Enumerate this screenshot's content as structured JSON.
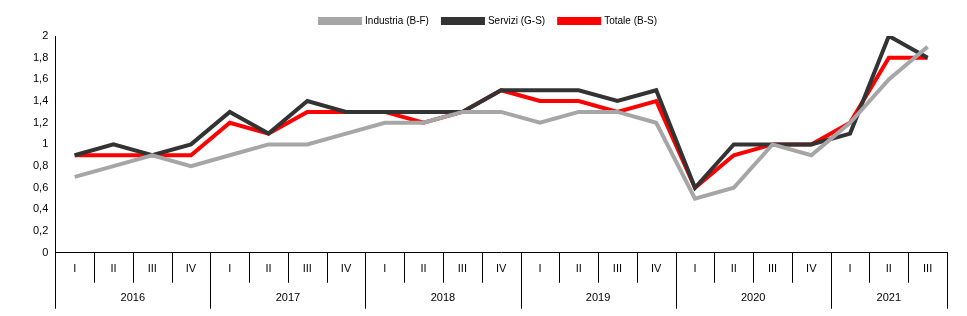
{
  "chart_data": {
    "type": "line",
    "categories": [
      "I",
      "II",
      "III",
      "IV",
      "I",
      "II",
      "III",
      "IV",
      "I",
      "II",
      "III",
      "IV",
      "I",
      "II",
      "III",
      "IV",
      "I",
      "II",
      "III",
      "IV",
      "I",
      "II",
      "III"
    ],
    "years": [
      "2016",
      "2017",
      "2018",
      "2019",
      "2020",
      "2021"
    ],
    "series": [
      {
        "name": "Industria (B-F)",
        "color": "#a6a6a6",
        "values": [
          0.7,
          0.8,
          0.9,
          0.8,
          0.9,
          1.0,
          1.0,
          1.1,
          1.2,
          1.2,
          1.3,
          1.3,
          1.2,
          1.3,
          1.3,
          1.2,
          0.5,
          0.6,
          1.0,
          0.9,
          1.2,
          1.6,
          1.9
        ]
      },
      {
        "name": "Servizi (G-S)",
        "color": "#333333",
        "values": [
          0.9,
          1.0,
          0.9,
          1.0,
          1.3,
          1.1,
          1.4,
          1.3,
          1.3,
          1.3,
          1.3,
          1.5,
          1.5,
          1.5,
          1.4,
          1.5,
          0.6,
          1.0,
          1.0,
          1.0,
          1.1,
          2.0,
          1.8
        ]
      },
      {
        "name": "Totale (B-S)",
        "color": "#ff0000",
        "values": [
          0.9,
          0.9,
          0.9,
          0.9,
          1.2,
          1.1,
          1.3,
          1.3,
          1.3,
          1.2,
          1.3,
          1.5,
          1.4,
          1.4,
          1.3,
          1.4,
          0.6,
          0.9,
          1.0,
          1.0,
          1.2,
          1.8,
          1.8
        ]
      }
    ],
    "ylim": [
      0,
      2
    ],
    "yticks": [
      0,
      {
        "value": 0.2,
        "label": "0,2"
      },
      {
        "value": 0.4,
        "label": "0,4"
      },
      {
        "value": 0.6,
        "label": "0,6"
      },
      {
        "value": 0.8,
        "label": "0,8"
      },
      1,
      {
        "value": 1.2,
        "label": "1,2"
      },
      {
        "value": 1.4,
        "label": "1,4"
      },
      {
        "value": 1.6,
        "label": "1,6"
      },
      {
        "value": 1.8,
        "label": "1,8"
      },
      2
    ],
    "grid": false,
    "legend": "top"
  }
}
